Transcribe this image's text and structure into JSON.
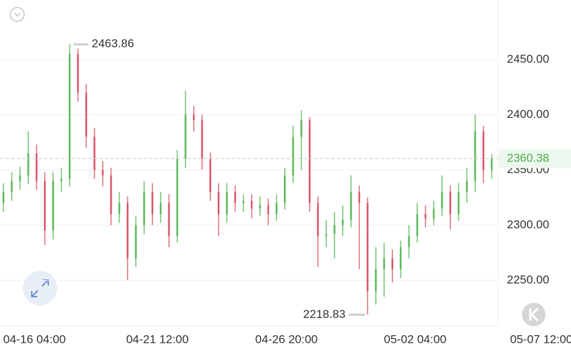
{
  "chart_data": {
    "type": "candlestick",
    "open": [
      2320,
      2330,
      2340,
      2345,
      2365,
      2340,
      2295,
      2340,
      2342,
      2455,
      2420,
      2380,
      2350,
      2345,
      2310,
      2320,
      2270,
      2300,
      2330,
      2310,
      2320,
      2290,
      2360,
      2400,
      2395,
      2360,
      2330,
      2310,
      2330,
      2320,
      2322,
      2315,
      2318,
      2310,
      2320,
      2345,
      2380,
      2395,
      2320,
      2290,
      2292,
      2300,
      2305,
      2330,
      2320,
      2240,
      2260,
      2270,
      2260,
      2280,
      2290,
      2310,
      2306,
      2315,
      2330,
      2310,
      2330,
      2340,
      2385,
      2350
    ],
    "high": [
      2338,
      2348,
      2353,
      2385,
      2373,
      2348,
      2348,
      2352,
      2463.86,
      2460,
      2428,
      2388,
      2358,
      2352,
      2330,
      2326,
      2308,
      2340,
      2338,
      2330,
      2328,
      2368,
      2422,
      2408,
      2400,
      2366,
      2338,
      2338,
      2336,
      2328,
      2328,
      2326,
      2324,
      2328,
      2352,
      2390,
      2404,
      2398,
      2326,
      2305,
      2312,
      2318,
      2345,
      2336,
      2325,
      2280,
      2284,
      2278,
      2286,
      2300,
      2320,
      2318,
      2322,
      2345,
      2336,
      2338,
      2352,
      2400,
      2390,
      2364
    ],
    "low": [
      2312,
      2322,
      2332,
      2337,
      2332,
      2282,
      2287,
      2330,
      2335,
      2412,
      2370,
      2342,
      2335,
      2300,
      2302,
      2250,
      2262,
      2292,
      2300,
      2302,
      2280,
      2284,
      2352,
      2385,
      2350,
      2322,
      2290,
      2302,
      2312,
      2312,
      2306,
      2308,
      2300,
      2304,
      2314,
      2338,
      2350,
      2312,
      2262,
      2280,
      2270,
      2290,
      2298,
      2260,
      2218.83,
      2228,
      2235,
      2248,
      2252,
      2270,
      2284,
      2298,
      2300,
      2308,
      2296,
      2304,
      2320,
      2330,
      2338,
      2342
    ],
    "close": [
      2330,
      2340,
      2345,
      2365,
      2340,
      2295,
      2340,
      2342,
      2455,
      2420,
      2380,
      2350,
      2345,
      2310,
      2320,
      2270,
      2300,
      2330,
      2310,
      2320,
      2290,
      2360,
      2400,
      2395,
      2360,
      2330,
      2310,
      2330,
      2320,
      2322,
      2315,
      2318,
      2310,
      2320,
      2345,
      2380,
      2395,
      2320,
      2290,
      2292,
      2300,
      2305,
      2330,
      2320,
      2240,
      2260,
      2270,
      2260,
      2280,
      2290,
      2310,
      2306,
      2315,
      2330,
      2310,
      2330,
      2340,
      2385,
      2350,
      2360.38
    ],
    "up_color": "#5cb85c",
    "down_color": "#d9576a",
    "ylim": [
      2209,
      2504
    ],
    "yticks": [
      {
        "value": 2250,
        "label": "2250.00"
      },
      {
        "value": 2300,
        "label": "2300.00"
      },
      {
        "value": 2350,
        "label": "2350.00"
      },
      {
        "value": 2400,
        "label": "2400.00"
      },
      {
        "value": 2450,
        "label": "2450.00"
      }
    ],
    "xticks": [
      {
        "value": 3.75,
        "label": "04-16 04:00"
      },
      {
        "value": 18.6,
        "label": "04-21 12:00"
      },
      {
        "value": 34.2,
        "label": "04-26 20:00"
      },
      {
        "value": 49.75,
        "label": "05-02 04:00"
      },
      {
        "value": 65,
        "label": "05-07 12:00"
      }
    ],
    "last_price": 2360.38,
    "grid": true
  }
}
